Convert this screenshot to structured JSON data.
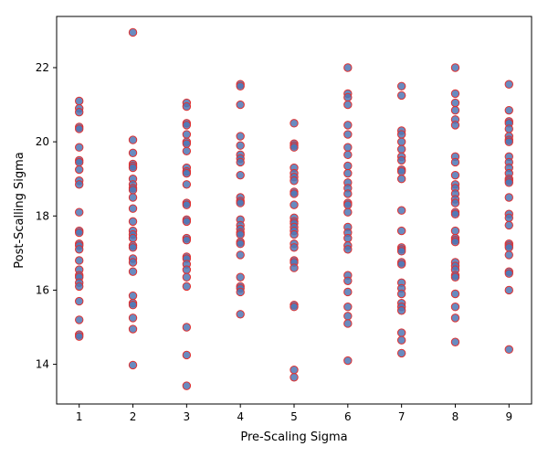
{
  "chart_data": {
    "type": "scatter",
    "title": "",
    "xlabel": "Pre-Scaling Sigma",
    "ylabel": "Post-Scalling Sigma",
    "xlim": [
      0.58,
      9.42
    ],
    "ylim": [
      12.93,
      23.38
    ],
    "xticks": [
      "1",
      "2",
      "3",
      "4",
      "5",
      "6",
      "7",
      "8",
      "9"
    ],
    "yticks": [
      "14",
      "16",
      "18",
      "20",
      "22"
    ],
    "grid": false,
    "marker_fill": "#4f77b5",
    "marker_edge": "#e03030",
    "points": [
      [
        1,
        21.1
      ],
      [
        1,
        20.9
      ],
      [
        1,
        20.8
      ],
      [
        1,
        20.4
      ],
      [
        1,
        20.35
      ],
      [
        1,
        19.85
      ],
      [
        1,
        19.5
      ],
      [
        1,
        19.45
      ],
      [
        1,
        19.25
      ],
      [
        1,
        18.95
      ],
      [
        1,
        18.85
      ],
      [
        1,
        18.1
      ],
      [
        1,
        17.6
      ],
      [
        1,
        17.55
      ],
      [
        1,
        17.25
      ],
      [
        1,
        17.2
      ],
      [
        1,
        17.1
      ],
      [
        1,
        16.8
      ],
      [
        1,
        16.55
      ],
      [
        1,
        16.4
      ],
      [
        1,
        16.35
      ],
      [
        1,
        16.2
      ],
      [
        1,
        16.1
      ],
      [
        1,
        15.7
      ],
      [
        1,
        15.2
      ],
      [
        1,
        14.8
      ],
      [
        1,
        14.75
      ],
      [
        2,
        22.95
      ],
      [
        2,
        20.05
      ],
      [
        2,
        19.7
      ],
      [
        2,
        19.4
      ],
      [
        2,
        19.35
      ],
      [
        2,
        19.3
      ],
      [
        2,
        19.0
      ],
      [
        2,
        18.85
      ],
      [
        2,
        18.75
      ],
      [
        2,
        18.7
      ],
      [
        2,
        18.5
      ],
      [
        2,
        18.2
      ],
      [
        2,
        17.85
      ],
      [
        2,
        17.6
      ],
      [
        2,
        17.5
      ],
      [
        2,
        17.4
      ],
      [
        2,
        17.2
      ],
      [
        2,
        17.15
      ],
      [
        2,
        16.85
      ],
      [
        2,
        16.75
      ],
      [
        2,
        16.5
      ],
      [
        2,
        15.85
      ],
      [
        2,
        15.65
      ],
      [
        2,
        15.6
      ],
      [
        2,
        15.25
      ],
      [
        2,
        14.95
      ],
      [
        2,
        13.98
      ],
      [
        3,
        21.05
      ],
      [
        3,
        20.95
      ],
      [
        3,
        20.5
      ],
      [
        3,
        20.45
      ],
      [
        3,
        20.2
      ],
      [
        3,
        20.0
      ],
      [
        3,
        19.95
      ],
      [
        3,
        19.75
      ],
      [
        3,
        19.3
      ],
      [
        3,
        19.2
      ],
      [
        3,
        19.15
      ],
      [
        3,
        18.85
      ],
      [
        3,
        18.35
      ],
      [
        3,
        18.3
      ],
      [
        3,
        17.9
      ],
      [
        3,
        17.85
      ],
      [
        3,
        17.4
      ],
      [
        3,
        17.35
      ],
      [
        3,
        16.9
      ],
      [
        3,
        16.85
      ],
      [
        3,
        16.7
      ],
      [
        3,
        16.55
      ],
      [
        3,
        16.35
      ],
      [
        3,
        16.1
      ],
      [
        3,
        15.0
      ],
      [
        3,
        14.25
      ],
      [
        3,
        13.42
      ],
      [
        4,
        21.55
      ],
      [
        4,
        21.5
      ],
      [
        4,
        21.0
      ],
      [
        4,
        20.15
      ],
      [
        4,
        19.9
      ],
      [
        4,
        19.65
      ],
      [
        4,
        19.55
      ],
      [
        4,
        19.45
      ],
      [
        4,
        19.1
      ],
      [
        4,
        18.5
      ],
      [
        4,
        18.4
      ],
      [
        4,
        18.35
      ],
      [
        4,
        17.9
      ],
      [
        4,
        17.75
      ],
      [
        4,
        17.65
      ],
      [
        4,
        17.55
      ],
      [
        4,
        17.5
      ],
      [
        4,
        17.3
      ],
      [
        4,
        17.25
      ],
      [
        4,
        16.95
      ],
      [
        4,
        16.35
      ],
      [
        4,
        16.1
      ],
      [
        4,
        16.05
      ],
      [
        4,
        15.95
      ],
      [
        4,
        15.35
      ],
      [
        5,
        20.5
      ],
      [
        5,
        19.95
      ],
      [
        5,
        19.9
      ],
      [
        5,
        19.85
      ],
      [
        5,
        19.3
      ],
      [
        5,
        19.15
      ],
      [
        5,
        19.05
      ],
      [
        5,
        18.95
      ],
      [
        5,
        18.65
      ],
      [
        5,
        18.6
      ],
      [
        5,
        18.3
      ],
      [
        5,
        17.95
      ],
      [
        5,
        17.85
      ],
      [
        5,
        17.8
      ],
      [
        5,
        17.7
      ],
      [
        5,
        17.6
      ],
      [
        5,
        17.5
      ],
      [
        5,
        17.25
      ],
      [
        5,
        17.15
      ],
      [
        5,
        16.8
      ],
      [
        5,
        16.75
      ],
      [
        5,
        16.6
      ],
      [
        5,
        15.6
      ],
      [
        5,
        15.55
      ],
      [
        5,
        13.85
      ],
      [
        5,
        13.65
      ],
      [
        6,
        22.0
      ],
      [
        6,
        21.3
      ],
      [
        6,
        21.2
      ],
      [
        6,
        21.0
      ],
      [
        6,
        20.45
      ],
      [
        6,
        20.2
      ],
      [
        6,
        19.85
      ],
      [
        6,
        19.65
      ],
      [
        6,
        19.35
      ],
      [
        6,
        19.15
      ],
      [
        6,
        18.9
      ],
      [
        6,
        18.75
      ],
      [
        6,
        18.6
      ],
      [
        6,
        18.35
      ],
      [
        6,
        18.3
      ],
      [
        6,
        18.1
      ],
      [
        6,
        17.7
      ],
      [
        6,
        17.55
      ],
      [
        6,
        17.4
      ],
      [
        6,
        17.2
      ],
      [
        6,
        17.1
      ],
      [
        6,
        16.4
      ],
      [
        6,
        16.25
      ],
      [
        6,
        15.95
      ],
      [
        6,
        15.55
      ],
      [
        6,
        15.3
      ],
      [
        6,
        15.1
      ],
      [
        6,
        14.1
      ],
      [
        7,
        21.5
      ],
      [
        7,
        21.25
      ],
      [
        7,
        20.3
      ],
      [
        7,
        20.2
      ],
      [
        7,
        20.0
      ],
      [
        7,
        19.8
      ],
      [
        7,
        19.6
      ],
      [
        7,
        19.5
      ],
      [
        7,
        19.25
      ],
      [
        7,
        19.2
      ],
      [
        7,
        19.0
      ],
      [
        7,
        18.15
      ],
      [
        7,
        17.6
      ],
      [
        7,
        17.15
      ],
      [
        7,
        17.1
      ],
      [
        7,
        17.05
      ],
      [
        7,
        16.75
      ],
      [
        7,
        16.7
      ],
      [
        7,
        16.2
      ],
      [
        7,
        16.05
      ],
      [
        7,
        15.9
      ],
      [
        7,
        15.65
      ],
      [
        7,
        15.55
      ],
      [
        7,
        15.45
      ],
      [
        7,
        14.85
      ],
      [
        7,
        14.65
      ],
      [
        7,
        14.3
      ],
      [
        8,
        22.0
      ],
      [
        8,
        21.3
      ],
      [
        8,
        21.05
      ],
      [
        8,
        20.85
      ],
      [
        8,
        20.6
      ],
      [
        8,
        20.45
      ],
      [
        8,
        19.6
      ],
      [
        8,
        19.45
      ],
      [
        8,
        19.1
      ],
      [
        8,
        18.85
      ],
      [
        8,
        18.75
      ],
      [
        8,
        18.6
      ],
      [
        8,
        18.45
      ],
      [
        8,
        18.35
      ],
      [
        8,
        18.1
      ],
      [
        8,
        18.05
      ],
      [
        8,
        17.6
      ],
      [
        8,
        17.4
      ],
      [
        8,
        17.35
      ],
      [
        8,
        17.3
      ],
      [
        8,
        16.75
      ],
      [
        8,
        16.65
      ],
      [
        8,
        16.55
      ],
      [
        8,
        16.4
      ],
      [
        8,
        16.35
      ],
      [
        8,
        15.9
      ],
      [
        8,
        15.55
      ],
      [
        8,
        15.25
      ],
      [
        8,
        14.6
      ],
      [
        9,
        21.55
      ],
      [
        9,
        20.85
      ],
      [
        9,
        20.55
      ],
      [
        9,
        20.5
      ],
      [
        9,
        20.35
      ],
      [
        9,
        20.15
      ],
      [
        9,
        20.05
      ],
      [
        9,
        20.0
      ],
      [
        9,
        19.6
      ],
      [
        9,
        19.45
      ],
      [
        9,
        19.3
      ],
      [
        9,
        19.15
      ],
      [
        9,
        19.0
      ],
      [
        9,
        18.95
      ],
      [
        9,
        18.9
      ],
      [
        9,
        18.5
      ],
      [
        9,
        18.05
      ],
      [
        9,
        17.95
      ],
      [
        9,
        17.75
      ],
      [
        9,
        17.25
      ],
      [
        9,
        17.2
      ],
      [
        9,
        17.15
      ],
      [
        9,
        16.95
      ],
      [
        9,
        16.5
      ],
      [
        9,
        16.45
      ],
      [
        9,
        16.0
      ],
      [
        9,
        14.4
      ]
    ]
  }
}
